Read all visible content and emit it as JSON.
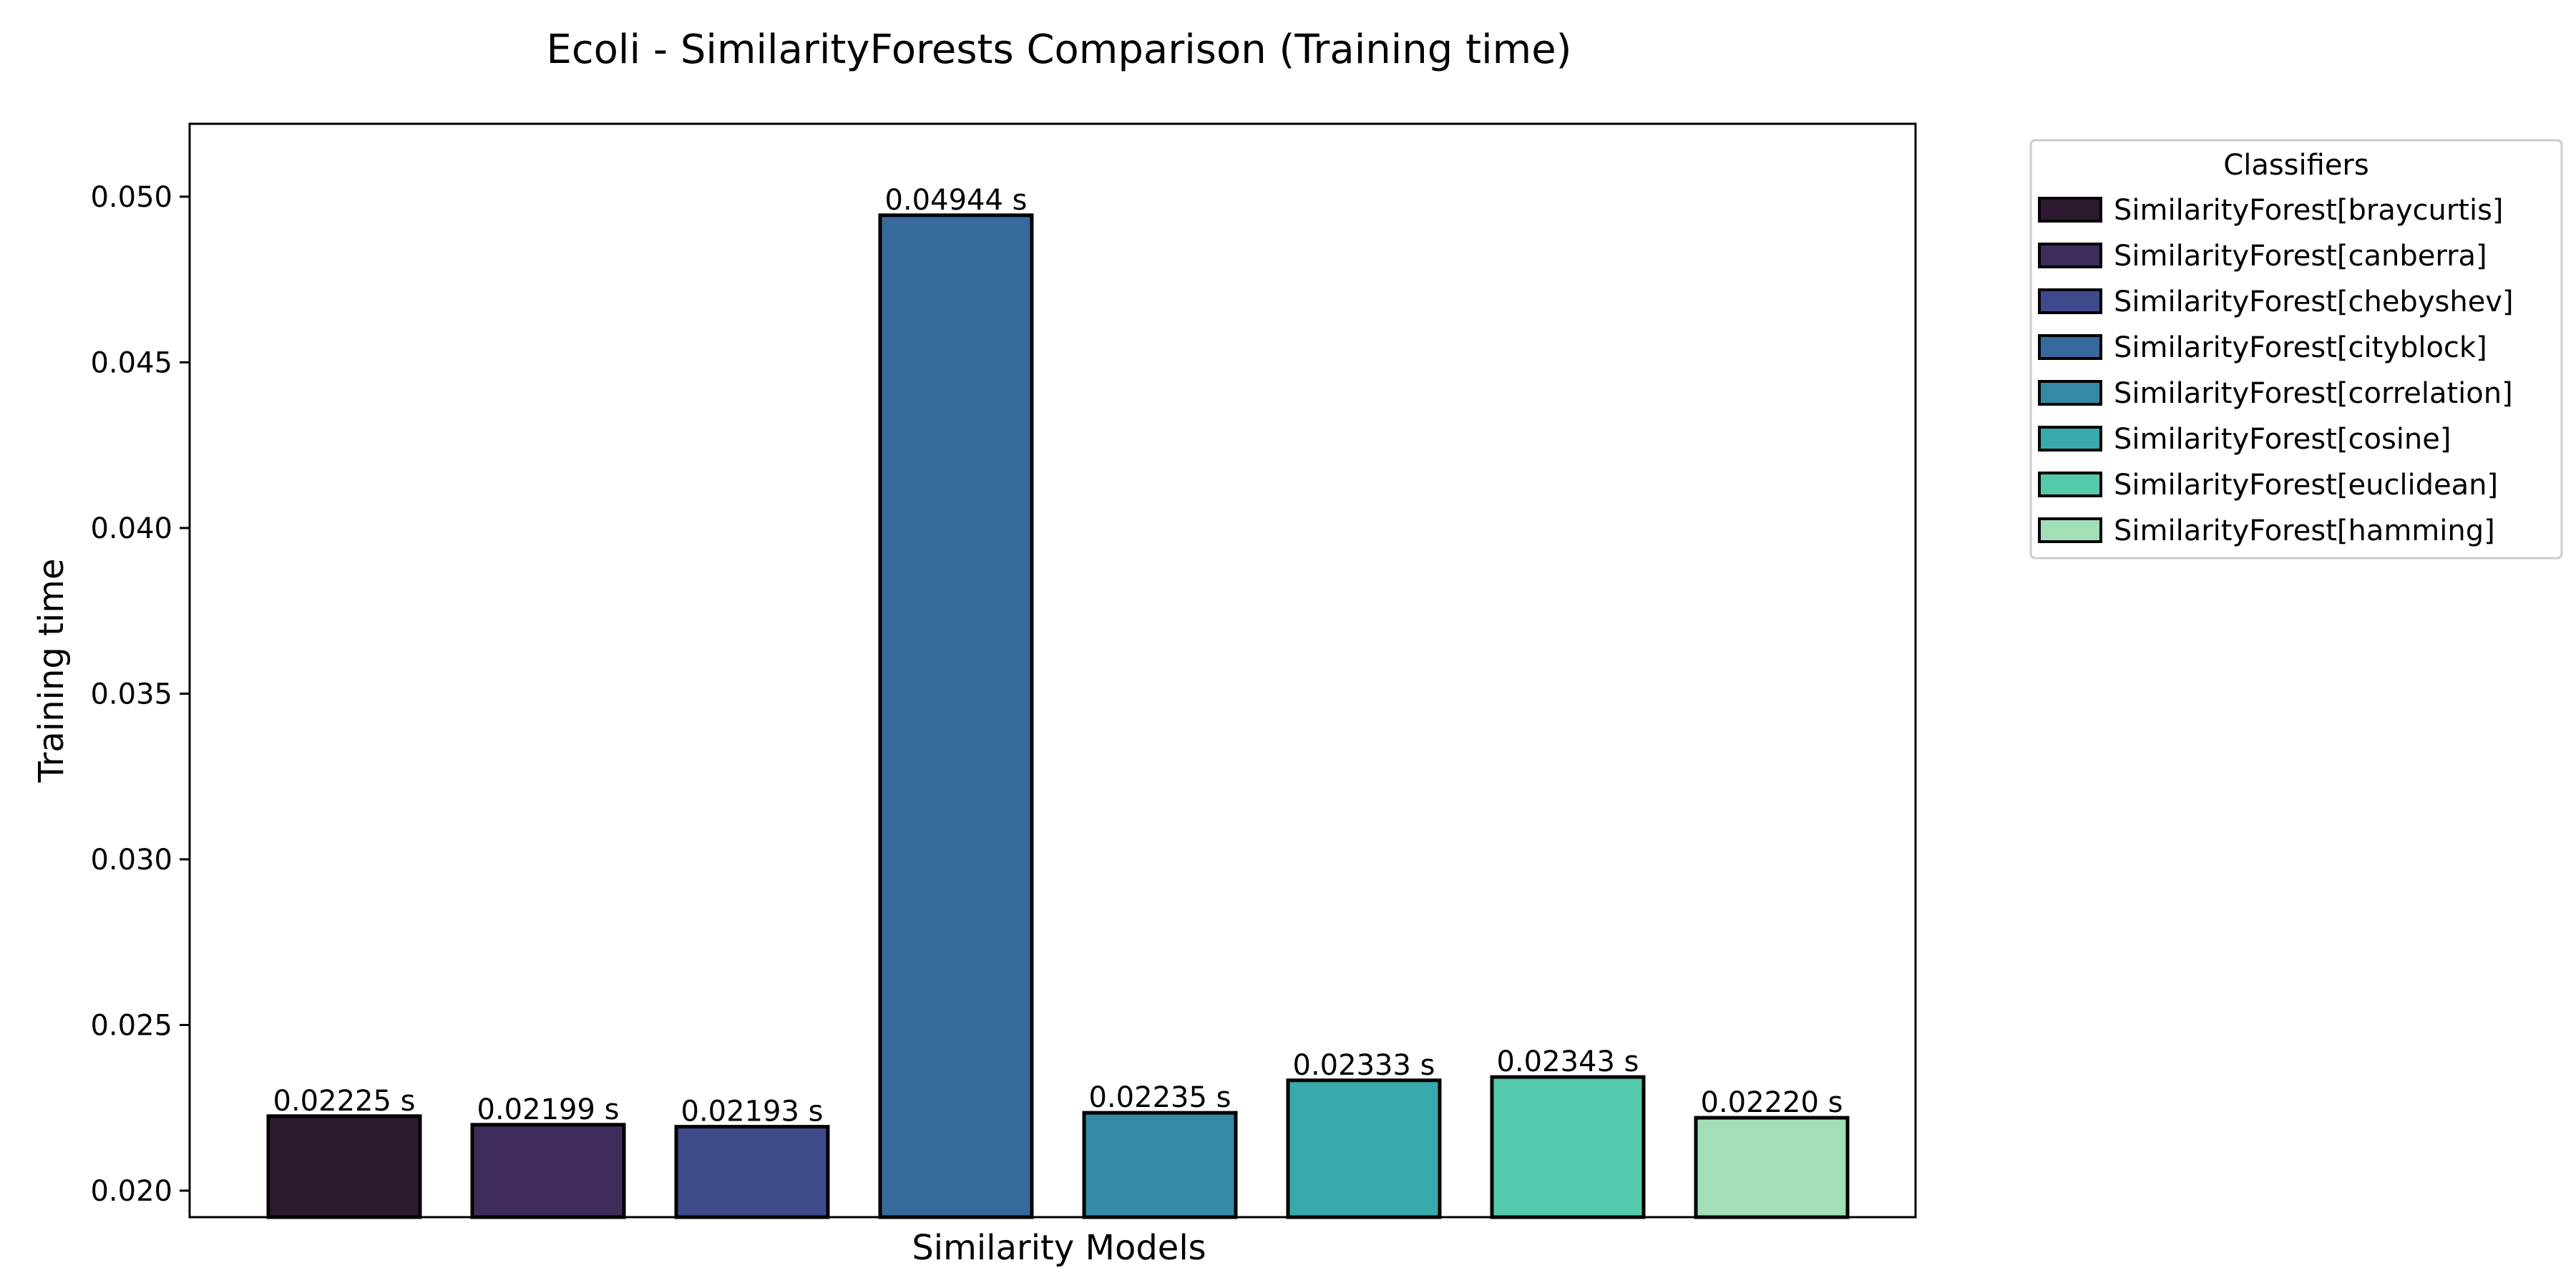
{
  "chart_data": {
    "type": "bar",
    "title": "Ecoli - SimilarityForests Comparison (Training time)",
    "xlabel": "Similarity Models",
    "ylabel": "Training time",
    "ylim": [
      0.0192,
      0.0522
    ],
    "yticks": [
      "0.020",
      "0.025",
      "0.030",
      "0.035",
      "0.040",
      "0.045",
      "0.050"
    ],
    "grid": false,
    "legend_position": "outside-right-top",
    "legend_title": "Classifiers",
    "series": [
      {
        "name": "SimilarityForest[braycurtis]",
        "value": 0.02225,
        "label": "0.02225 s",
        "color": "#2b1a2e"
      },
      {
        "name": "SimilarityForest[canberra]",
        "value": 0.02199,
        "label": "0.02199 s",
        "color": "#3e2d5a"
      },
      {
        "name": "SimilarityForest[chebyshev]",
        "value": 0.02193,
        "label": "0.02193 s",
        "color": "#3f4a8c"
      },
      {
        "name": "SimilarityForest[cityblock]",
        "value": 0.04944,
        "label": "0.04944 s",
        "color": "#36699c"
      },
      {
        "name": "SimilarityForest[correlation]",
        "value": 0.02235,
        "label": "0.02235 s",
        "color": "#348aa6"
      },
      {
        "name": "SimilarityForest[cosine]",
        "value": 0.02333,
        "label": "0.02333 s",
        "color": "#38aaac"
      },
      {
        "name": "SimilarityForest[euclidean]",
        "value": 0.02343,
        "label": "0.02343 s",
        "color": "#55c9ac"
      },
      {
        "name": "SimilarityForest[hamming]",
        "value": 0.0222,
        "label": "0.02220 s",
        "color": "#a1dfb7"
      }
    ]
  }
}
